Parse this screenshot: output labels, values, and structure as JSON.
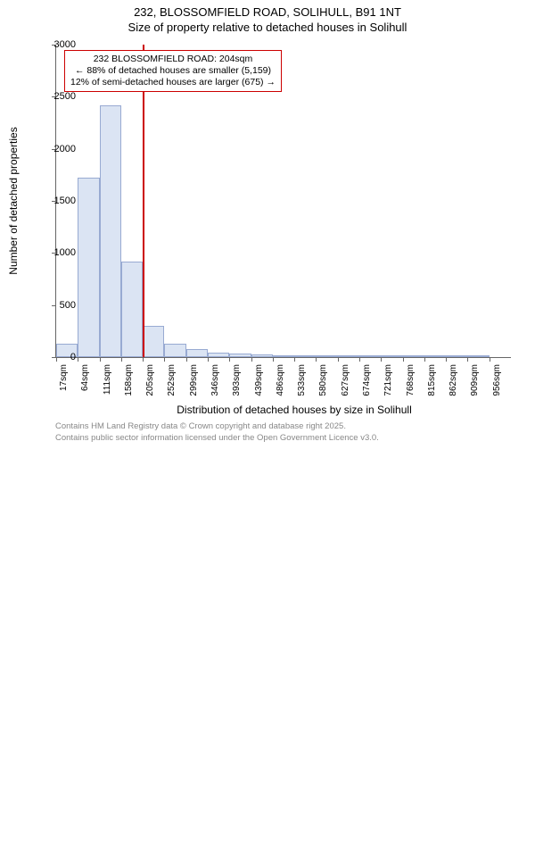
{
  "title": "232, BLOSSOMFIELD ROAD, SOLIHULL, B91 1NT",
  "subtitle": "Size of property relative to detached houses in Solihull",
  "chart": {
    "type": "histogram",
    "ylabel": "Number of detached properties",
    "xlabel": "Distribution of detached houses by size in Solihull",
    "ylim": [
      0,
      3000
    ],
    "ytick_step": 500,
    "yticks": [
      0,
      500,
      1000,
      1500,
      2000,
      2500,
      3000
    ],
    "xticks": [
      "17sqm",
      "64sqm",
      "111sqm",
      "158sqm",
      "205sqm",
      "252sqm",
      "299sqm",
      "346sqm",
      "393sqm",
      "439sqm",
      "486sqm",
      "533sqm",
      "580sqm",
      "627sqm",
      "674sqm",
      "721sqm",
      "768sqm",
      "815sqm",
      "862sqm",
      "909sqm",
      "956sqm"
    ],
    "values": [
      130,
      1720,
      2420,
      920,
      300,
      130,
      80,
      45,
      35,
      30,
      20,
      10,
      6,
      5,
      4,
      3,
      2,
      2,
      2,
      1
    ],
    "bar_fill": "#dbe4f3",
    "bar_stroke": "#98aad2",
    "background_color": "#ffffff",
    "axis_color": "#666666",
    "tick_fontsize": 11,
    "label_fontsize": 12,
    "title_fontsize": 13
  },
  "marker": {
    "position_sqm": 204,
    "color": "#cc0000",
    "annotation_lines": [
      "232 BLOSSOMFIELD ROAD: 204sqm",
      "← 88% of detached houses are smaller (5,159)",
      "12% of semi-detached houses are larger (675) →"
    ]
  },
  "footer": {
    "line1": "Contains HM Land Registry data © Crown copyright and database right 2025.",
    "line2": "Contains public sector information licensed under the Open Government Licence v3.0.",
    "color": "#888888"
  }
}
